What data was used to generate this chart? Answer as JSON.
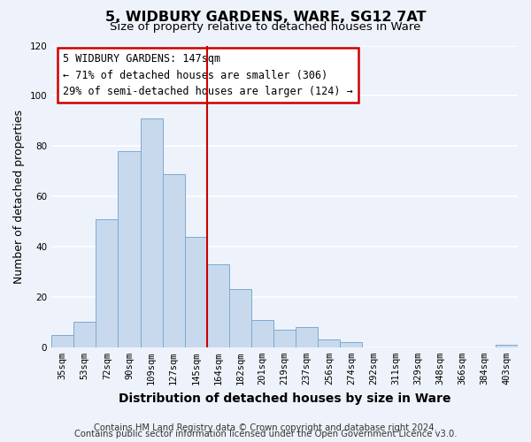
{
  "title": "5, WIDBURY GARDENS, WARE, SG12 7AT",
  "subtitle": "Size of property relative to detached houses in Ware",
  "xlabel": "Distribution of detached houses by size in Ware",
  "ylabel": "Number of detached properties",
  "bar_color": "#c8d9ee",
  "bar_edge_color": "#7aabcf",
  "categories": [
    "35sqm",
    "53sqm",
    "72sqm",
    "90sqm",
    "109sqm",
    "127sqm",
    "145sqm",
    "164sqm",
    "182sqm",
    "201sqm",
    "219sqm",
    "237sqm",
    "256sqm",
    "274sqm",
    "292sqm",
    "311sqm",
    "329sqm",
    "348sqm",
    "366sqm",
    "384sqm",
    "403sqm"
  ],
  "values": [
    5,
    10,
    51,
    78,
    91,
    69,
    44,
    33,
    23,
    11,
    7,
    8,
    3,
    2,
    0,
    0,
    0,
    0,
    0,
    0,
    1
  ],
  "vline_x": 6.5,
  "vline_color": "#cc0000",
  "annotation_title": "5 WIDBURY GARDENS: 147sqm",
  "annotation_line1": "← 71% of detached houses are smaller (306)",
  "annotation_line2": "29% of semi-detached houses are larger (124) →",
  "annotation_box_color": "#ffffff",
  "annotation_box_edge": "#cc0000",
  "ylim": [
    0,
    120
  ],
  "yticks": [
    0,
    20,
    40,
    60,
    80,
    100,
    120
  ],
  "footer1": "Contains HM Land Registry data © Crown copyright and database right 2024.",
  "footer2": "Contains public sector information licensed under the Open Government Licence v3.0.",
  "background_color": "#eef2fa",
  "grid_color": "#ffffff",
  "title_fontsize": 11.5,
  "subtitle_fontsize": 9.5,
  "xlabel_fontsize": 10,
  "ylabel_fontsize": 9,
  "tick_fontsize": 7.5,
  "footer_fontsize": 7.2,
  "ann_fontsize": 8.5
}
